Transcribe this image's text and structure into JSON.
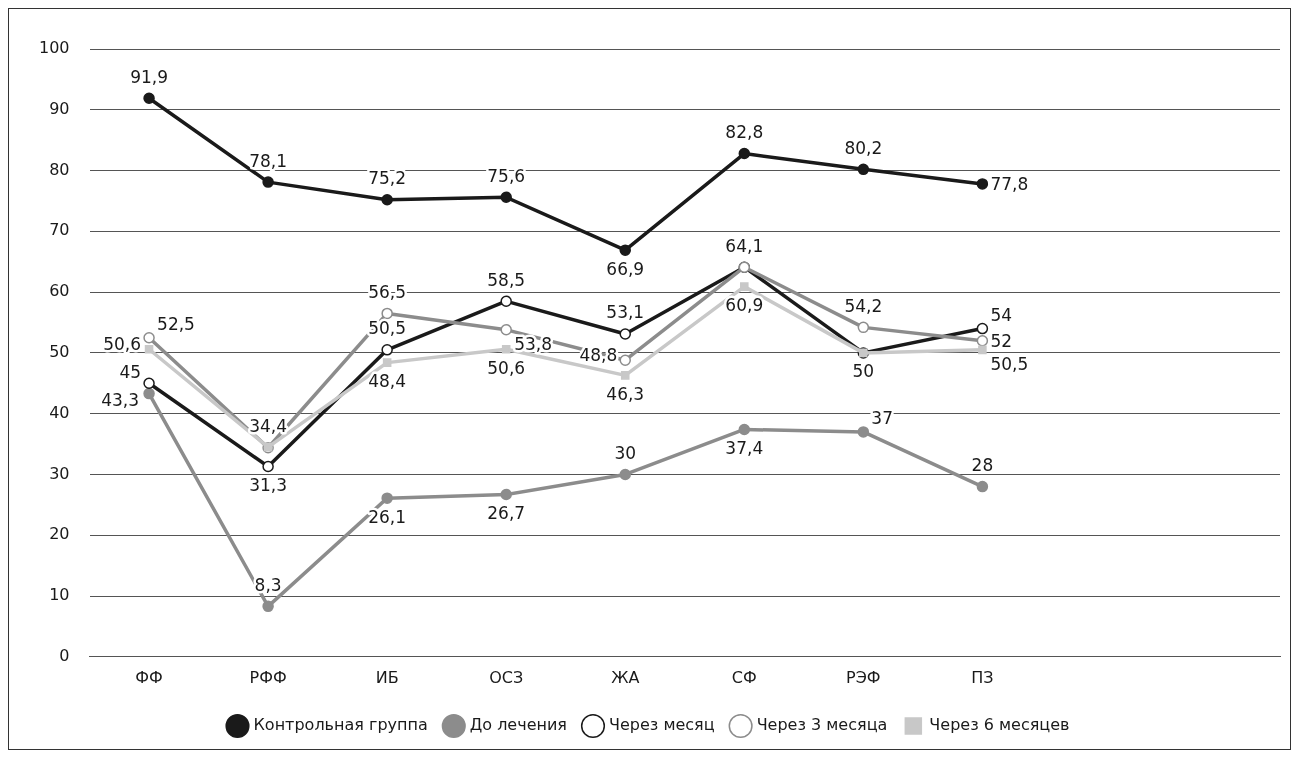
{
  "chart_data": {
    "type": "line",
    "categories": [
      "ФФ",
      "РФФ",
      "ИБ",
      "ОСЗ",
      "ЖА",
      "СФ",
      "РЭФ",
      "ПЗ",
      null,
      null
    ],
    "ylim": [
      0,
      100
    ],
    "yticks": [
      0,
      10,
      20,
      30,
      40,
      50,
      60,
      70,
      80,
      90,
      100
    ],
    "grid": "y",
    "legend": "bottom",
    "line_style": "solid",
    "series": [
      {
        "name": "Контрольная группа",
        "color": "#1a1a1a",
        "marker": "circle",
        "values": [
          91.9,
          78.1,
          75.2,
          75.6,
          66.9,
          82.8,
          80.2,
          77.8,
          null,
          null
        ],
        "value_labels": [
          "91,9",
          "78,1",
          "75,2",
          "75,6",
          "66,9",
          "82,8",
          "80,2",
          "77,8",
          null,
          null
        ]
      },
      {
        "name": "До лечения",
        "color": "#8c8c8c",
        "marker": "circle",
        "values": [
          43.3,
          8.3,
          26.1,
          26.7,
          30,
          37.4,
          37,
          28,
          null,
          null
        ],
        "value_labels": [
          "43,3",
          "8,3",
          "26,1",
          "26,7",
          "30",
          "37,4",
          "37",
          "28",
          null,
          null
        ]
      },
      {
        "name": "Через месяц",
        "color": "#1a1a1a",
        "marker": "circle",
        "values": [
          45,
          31.3,
          50.5,
          58.5,
          53.1,
          64.1,
          50,
          54,
          null,
          null
        ],
        "value_labels": [
          "45",
          "31,3",
          "50,5",
          "58,5",
          "53,1",
          "64,1",
          "50",
          "54",
          null,
          null
        ]
      },
      {
        "name": "Через 3 месяца",
        "color": "#8c8c8c",
        "marker": "circle",
        "values": [
          52.5,
          34.4,
          56.5,
          53.8,
          48.8,
          64.1,
          54.2,
          52,
          null,
          null
        ],
        "value_labels": [
          "52,5",
          "34,4",
          "56,5",
          "53,8",
          "48,8",
          null,
          "54,2",
          "52",
          null,
          null
        ]
      },
      {
        "name": "Через 6 месяцев",
        "color": "#c8c8c8",
        "marker": "square",
        "values": [
          50.6,
          34.5,
          48.4,
          50.6,
          46.3,
          60.9,
          50,
          50.5,
          null,
          null
        ],
        "value_labels": [
          "50,6",
          null,
          "48,4",
          "50,6",
          "46,3",
          "60,9",
          null,
          "50,5",
          null,
          null
        ]
      }
    ]
  }
}
